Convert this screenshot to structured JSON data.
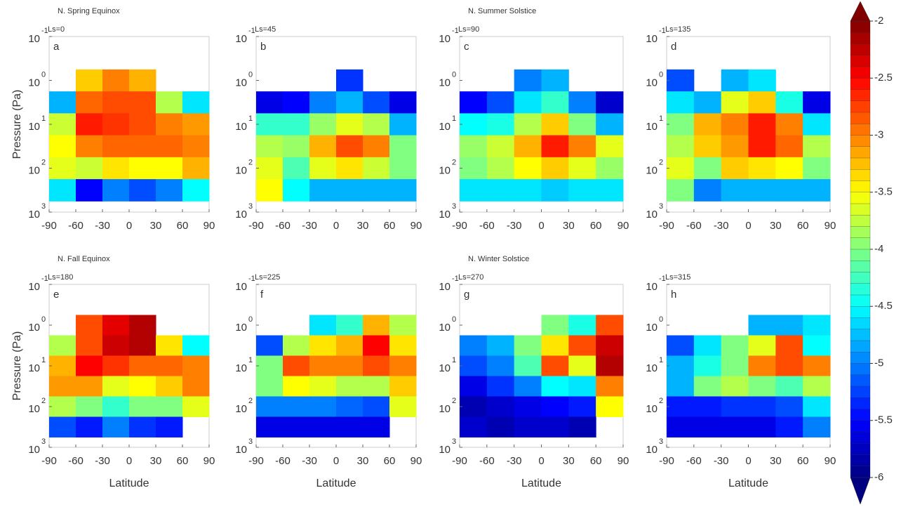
{
  "chart_data": [
    {
      "type": "heatmap",
      "title": "N. Spring Equinox",
      "panel": "a",
      "ls": "Ls=0",
      "ylabel": "Pressure (Pa)",
      "x": [
        -75,
        -45,
        -15,
        15,
        45,
        75
      ],
      "y": [
        1,
        3.16,
        10,
        31.6,
        100,
        316
      ],
      "z": [
        [
          null,
          -3.3,
          -3.0,
          -3.2,
          null,
          null
        ],
        [
          -4.8,
          -2.9,
          -2.8,
          -2.8,
          -3.8,
          -4.6
        ],
        [
          -3.7,
          -2.6,
          -2.7,
          -2.8,
          -3.0,
          -3.1
        ],
        [
          -3.5,
          -3.0,
          -2.9,
          -2.9,
          -2.9,
          -3.0
        ],
        [
          -3.6,
          -3.7,
          -3.4,
          -3.5,
          -3.5,
          -3.2
        ],
        [
          -4.6,
          -5.5,
          -5.0,
          -5.2,
          -5.0,
          -4.5
        ]
      ],
      "xlim": [
        -90,
        90
      ],
      "ylim": [
        1000,
        0.1
      ],
      "log_y": true,
      "xticks": [
        -90,
        -60,
        -30,
        0,
        30,
        60,
        90
      ],
      "yticks": [
        {
          "value": 0.1,
          "label": "10",
          "exponent": "-1"
        },
        {
          "value": 1,
          "label": "10",
          "exponent": "0"
        },
        {
          "value": 10,
          "label": "10",
          "exponent": "1"
        },
        {
          "value": 100,
          "label": "10",
          "exponent": "2"
        },
        {
          "value": 1000,
          "label": "10",
          "exponent": "3"
        }
      ]
    },
    {
      "type": "heatmap",
      "panel": "b",
      "ls": "Ls=45",
      "x": [
        -75,
        -45,
        -15,
        15,
        45,
        75
      ],
      "y": [
        1,
        3.16,
        10,
        31.6,
        100,
        316
      ],
      "z": [
        [
          null,
          null,
          null,
          -5.3,
          null,
          null
        ],
        [
          -5.6,
          -5.5,
          -5.0,
          -4.8,
          -5.2,
          -5.6
        ],
        [
          -4.3,
          -4.3,
          -3.9,
          -3.6,
          -3.8,
          -4.8
        ],
        [
          -3.8,
          -3.9,
          -3.2,
          -2.8,
          -3.0,
          -4.0
        ],
        [
          -3.6,
          -4.2,
          -3.6,
          -3.4,
          -3.7,
          -4.0
        ],
        [
          -3.5,
          -4.5,
          -4.8,
          -4.8,
          -4.8,
          -4.8
        ]
      ],
      "xlim": [
        -90,
        90
      ],
      "ylim": [
        1000,
        0.1
      ],
      "log_y": true,
      "xticks": [
        -90,
        -60,
        -30,
        0,
        30,
        60,
        90
      ],
      "yticks": [
        {
          "value": 0.1,
          "label": "10",
          "exponent": "-1"
        },
        {
          "value": 1,
          "label": "10",
          "exponent": "0"
        },
        {
          "value": 10,
          "label": "10",
          "exponent": "1"
        },
        {
          "value": 100,
          "label": "10",
          "exponent": "2"
        },
        {
          "value": 1000,
          "label": "10",
          "exponent": "3"
        }
      ]
    },
    {
      "type": "heatmap",
      "title": "N. Summer Solstice",
      "panel": "c",
      "ls": "Ls=90",
      "x": [
        -75,
        -45,
        -15,
        15,
        45,
        75
      ],
      "y": [
        1,
        3.16,
        10,
        31.6,
        100,
        316
      ],
      "z": [
        [
          null,
          null,
          -5.0,
          -4.8,
          null,
          null
        ],
        [
          -5.5,
          -5.2,
          -4.6,
          -4.3,
          -5.0,
          -5.7
        ],
        [
          -4.5,
          -4.4,
          -3.8,
          -3.3,
          -4.0,
          -4.8
        ],
        [
          -3.9,
          -3.7,
          -3.2,
          -2.6,
          -3.0,
          -3.6
        ],
        [
          -4.0,
          -3.8,
          -3.5,
          -3.3,
          -3.6,
          -3.9
        ],
        [
          -4.6,
          -4.6,
          -4.6,
          -4.7,
          -4.6,
          -4.6
        ]
      ],
      "xlim": [
        -90,
        90
      ],
      "ylim": [
        1000,
        0.1
      ],
      "log_y": true,
      "xticks": [
        -90,
        -60,
        -30,
        0,
        30,
        60,
        90
      ],
      "yticks": [
        {
          "value": 0.1,
          "label": "10",
          "exponent": "-1"
        },
        {
          "value": 1,
          "label": "10",
          "exponent": "0"
        },
        {
          "value": 10,
          "label": "10",
          "exponent": "1"
        },
        {
          "value": 100,
          "label": "10",
          "exponent": "2"
        },
        {
          "value": 1000,
          "label": "10",
          "exponent": "3"
        }
      ]
    },
    {
      "type": "heatmap",
      "panel": "d",
      "ls": "Ls=135",
      "x": [
        -75,
        -45,
        -15,
        15,
        45,
        75
      ],
      "y": [
        1,
        3.16,
        10,
        31.6,
        100,
        316
      ],
      "z": [
        [
          -5.2,
          null,
          -4.8,
          -4.6,
          null,
          null
        ],
        [
          -4.6,
          -4.8,
          -3.6,
          -3.3,
          -4.4,
          -5.6
        ],
        [
          -4.0,
          -3.2,
          -3.0,
          -2.6,
          -3.0,
          -4.6
        ],
        [
          -3.8,
          -3.3,
          -3.1,
          -2.6,
          -2.9,
          -3.8
        ],
        [
          -3.6,
          -4.0,
          -3.3,
          -3.4,
          -3.5,
          -4.0
        ],
        [
          -4.0,
          -5.0,
          -4.8,
          -4.8,
          -4.8,
          -4.8
        ]
      ],
      "xlim": [
        -90,
        90
      ],
      "ylim": [
        1000,
        0.1
      ],
      "log_y": true,
      "xticks": [
        -90,
        -60,
        -30,
        0,
        30,
        60,
        90
      ],
      "yticks": [
        {
          "value": 0.1,
          "label": "10",
          "exponent": "-1"
        },
        {
          "value": 1,
          "label": "10",
          "exponent": "0"
        },
        {
          "value": 10,
          "label": "10",
          "exponent": "1"
        },
        {
          "value": 100,
          "label": "10",
          "exponent": "2"
        },
        {
          "value": 1000,
          "label": "10",
          "exponent": "3"
        }
      ]
    },
    {
      "type": "heatmap",
      "title": "N. Fall Equinox",
      "panel": "e",
      "ls": "Ls=180",
      "ylabel": "Pressure (Pa)",
      "xlabel": "Latitude",
      "x": [
        -75,
        -45,
        -15,
        15,
        45,
        75
      ],
      "y": [
        1,
        3.16,
        10,
        31.6,
        100,
        316
      ],
      "z": [
        [
          null,
          -2.8,
          -2.4,
          -2.2,
          null,
          null
        ],
        [
          -3.8,
          -2.8,
          -2.3,
          -2.2,
          -3.4,
          -4.5
        ],
        [
          -3.2,
          -2.5,
          -2.7,
          -2.9,
          -2.9,
          -3.0
        ],
        [
          -3.1,
          -3.1,
          -3.6,
          -3.5,
          -3.3,
          -3.0
        ],
        [
          -3.8,
          -4.0,
          -4.3,
          -4.0,
          -4.0,
          -3.6
        ],
        [
          -5.2,
          -5.4,
          -5.0,
          -5.3,
          -5.4,
          null
        ]
      ],
      "xlim": [
        -90,
        90
      ],
      "ylim": [
        1000,
        0.1
      ],
      "log_y": true,
      "xticks": [
        -90,
        -60,
        -30,
        0,
        30,
        60,
        90
      ],
      "yticks": [
        {
          "value": 0.1,
          "label": "10",
          "exponent": "-1"
        },
        {
          "value": 1,
          "label": "10",
          "exponent": "0"
        },
        {
          "value": 10,
          "label": "10",
          "exponent": "1"
        },
        {
          "value": 100,
          "label": "10",
          "exponent": "2"
        },
        {
          "value": 1000,
          "label": "10",
          "exponent": "3"
        }
      ]
    },
    {
      "type": "heatmap",
      "panel": "f",
      "ls": "Ls=225",
      "xlabel": "Latitude",
      "x": [
        -75,
        -45,
        -15,
        15,
        45,
        75
      ],
      "y": [
        1,
        3.16,
        10,
        31.6,
        100,
        316
      ],
      "z": [
        [
          null,
          null,
          -4.6,
          -4.3,
          -3.2,
          -3.8
        ],
        [
          -5.2,
          -3.8,
          -3.4,
          -3.2,
          -2.5,
          -3.4
        ],
        [
          -4.0,
          -2.8,
          -3.0,
          -3.0,
          -2.8,
          -3.0
        ],
        [
          -4.0,
          -3.5,
          -3.6,
          -3.8,
          -3.8,
          -3.3
        ],
        [
          -5.0,
          -5.0,
          -5.0,
          -5.1,
          -5.2,
          -3.6
        ],
        [
          -5.6,
          -5.6,
          -5.6,
          -5.6,
          -5.6,
          null
        ]
      ],
      "xlim": [
        -90,
        90
      ],
      "ylim": [
        1000,
        0.1
      ],
      "log_y": true,
      "xticks": [
        -90,
        -60,
        -30,
        0,
        30,
        60,
        90
      ],
      "yticks": [
        {
          "value": 0.1,
          "label": "10",
          "exponent": "-1"
        },
        {
          "value": 1,
          "label": "10",
          "exponent": "0"
        },
        {
          "value": 10,
          "label": "10",
          "exponent": "1"
        },
        {
          "value": 100,
          "label": "10",
          "exponent": "2"
        },
        {
          "value": 1000,
          "label": "10",
          "exponent": "3"
        }
      ]
    },
    {
      "type": "heatmap",
      "title": "N. Winter Solstice",
      "panel": "g",
      "ls": "Ls=270",
      "xlabel": "Latitude",
      "x": [
        -75,
        -45,
        -15,
        15,
        45,
        75
      ],
      "y": [
        1,
        3.16,
        10,
        31.6,
        100,
        316
      ],
      "z": [
        [
          null,
          null,
          null,
          -4.0,
          -4.4,
          -2.8
        ],
        [
          -5.0,
          -4.8,
          -4.0,
          -3.4,
          -2.8,
          -2.3
        ],
        [
          -5.2,
          -5.0,
          -4.2,
          -2.8,
          -3.6,
          -2.2
        ],
        [
          -5.6,
          -5.3,
          -5.0,
          -4.5,
          -4.6,
          -3.0
        ],
        [
          -5.8,
          -5.7,
          -5.6,
          -5.5,
          -5.4,
          -3.5
        ],
        [
          -5.7,
          -5.8,
          -5.7,
          -5.7,
          -5.8,
          null
        ]
      ],
      "xlim": [
        -90,
        90
      ],
      "ylim": [
        1000,
        0.1
      ],
      "log_y": true,
      "xticks": [
        -90,
        -60,
        -30,
        0,
        30,
        60,
        90
      ],
      "yticks": [
        {
          "value": 0.1,
          "label": "10",
          "exponent": "-1"
        },
        {
          "value": 1,
          "label": "10",
          "exponent": "0"
        },
        {
          "value": 10,
          "label": "10",
          "exponent": "1"
        },
        {
          "value": 100,
          "label": "10",
          "exponent": "2"
        },
        {
          "value": 1000,
          "label": "10",
          "exponent": "3"
        }
      ]
    },
    {
      "type": "heatmap",
      "panel": "h",
      "ls": "Ls=315",
      "xlabel": "Latitude",
      "x": [
        -75,
        -45,
        -15,
        15,
        45,
        75
      ],
      "y": [
        1,
        3.16,
        10,
        31.6,
        100,
        316
      ],
      "z": [
        [
          null,
          null,
          null,
          -4.8,
          -4.8,
          -4.6
        ],
        [
          -5.2,
          -4.6,
          -4.0,
          -3.6,
          -2.8,
          -4.5
        ],
        [
          -4.8,
          -4.4,
          -4.0,
          -3.0,
          -2.8,
          -3.0
        ],
        [
          -4.8,
          -4.0,
          -3.8,
          -4.0,
          -4.2,
          -3.8
        ],
        [
          -5.4,
          -5.4,
          -5.3,
          -5.3,
          -5.2,
          -4.6
        ],
        [
          -5.6,
          -5.6,
          -5.6,
          -5.6,
          -5.4,
          -5.0
        ]
      ],
      "xlim": [
        -90,
        90
      ],
      "ylim": [
        1000,
        0.1
      ],
      "log_y": true,
      "xticks": [
        -90,
        -60,
        -30,
        0,
        30,
        60,
        90
      ],
      "yticks": [
        {
          "value": 0.1,
          "label": "10",
          "exponent": "-1"
        },
        {
          "value": 1,
          "label": "10",
          "exponent": "0"
        },
        {
          "value": 10,
          "label": "10",
          "exponent": "1"
        },
        {
          "value": 100,
          "label": "10",
          "exponent": "2"
        },
        {
          "value": 1000,
          "label": "10",
          "exponent": "3"
        }
      ]
    }
  ],
  "colorbar": {
    "lim": [
      -6,
      -2
    ],
    "ticks": [
      -2,
      -2.5,
      -3,
      -3.5,
      -4,
      -4.5,
      -5,
      -5.5,
      -6
    ],
    "colormap": "jet"
  }
}
